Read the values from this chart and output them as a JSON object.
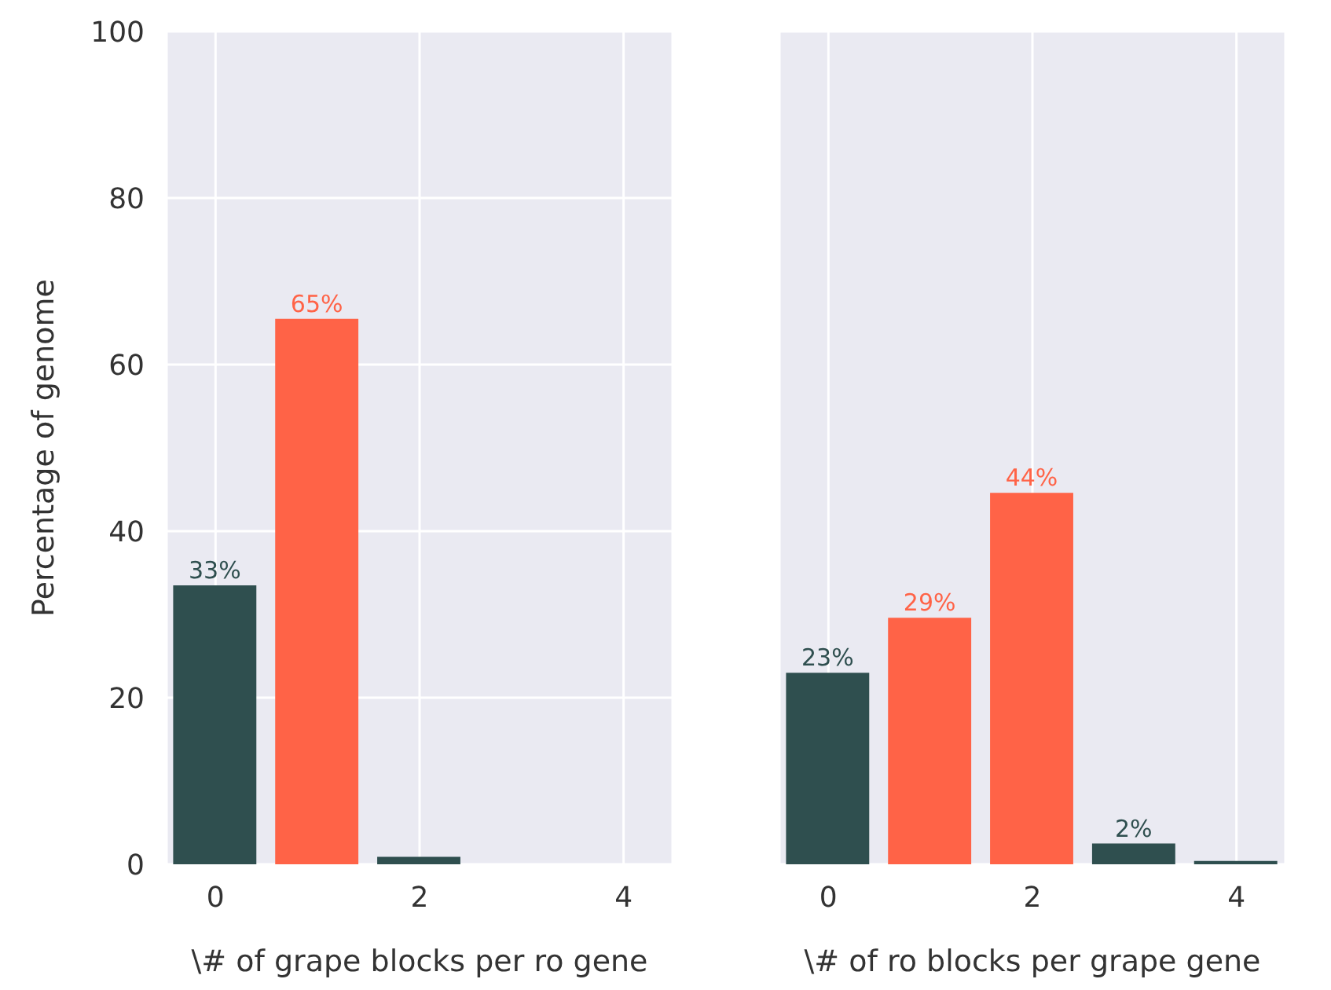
{
  "chart_data": [
    {
      "type": "bar",
      "ylabel": "Percentage of genome",
      "xlabel": "\\# of grape blocks per ro gene",
      "x": [
        0,
        1,
        2
      ],
      "values": [
        33.4,
        65.4,
        0.8
      ],
      "colors": [
        "#2f4f4f",
        "#ff6347",
        "#2f4f4f"
      ],
      "value_labels": [
        "33%",
        "65%",
        null
      ],
      "xlim": [
        -0.48,
        4.48
      ],
      "xticks": [
        0,
        2,
        4
      ],
      "ylim": [
        0,
        100
      ],
      "yticks": [
        0,
        20,
        40,
        60,
        80,
        100
      ],
      "grid": true
    },
    {
      "type": "bar",
      "xlabel": "\\# of ro blocks per grape gene",
      "x": [
        0,
        1,
        2,
        3,
        4
      ],
      "values": [
        22.9,
        29.5,
        44.5,
        2.4,
        0.3
      ],
      "colors": [
        "#2f4f4f",
        "#ff6347",
        "#ff6347",
        "#2f4f4f",
        "#2f4f4f"
      ],
      "value_labels": [
        "23%",
        "29%",
        "44%",
        "2%",
        null
      ],
      "xlim": [
        -0.48,
        4.48
      ],
      "xticks": [
        0,
        2,
        4
      ],
      "ylim": [
        0,
        100
      ],
      "yticks": [
        0,
        20,
        40,
        60,
        80,
        100
      ],
      "grid": true,
      "tick_labels": "x"
    }
  ]
}
